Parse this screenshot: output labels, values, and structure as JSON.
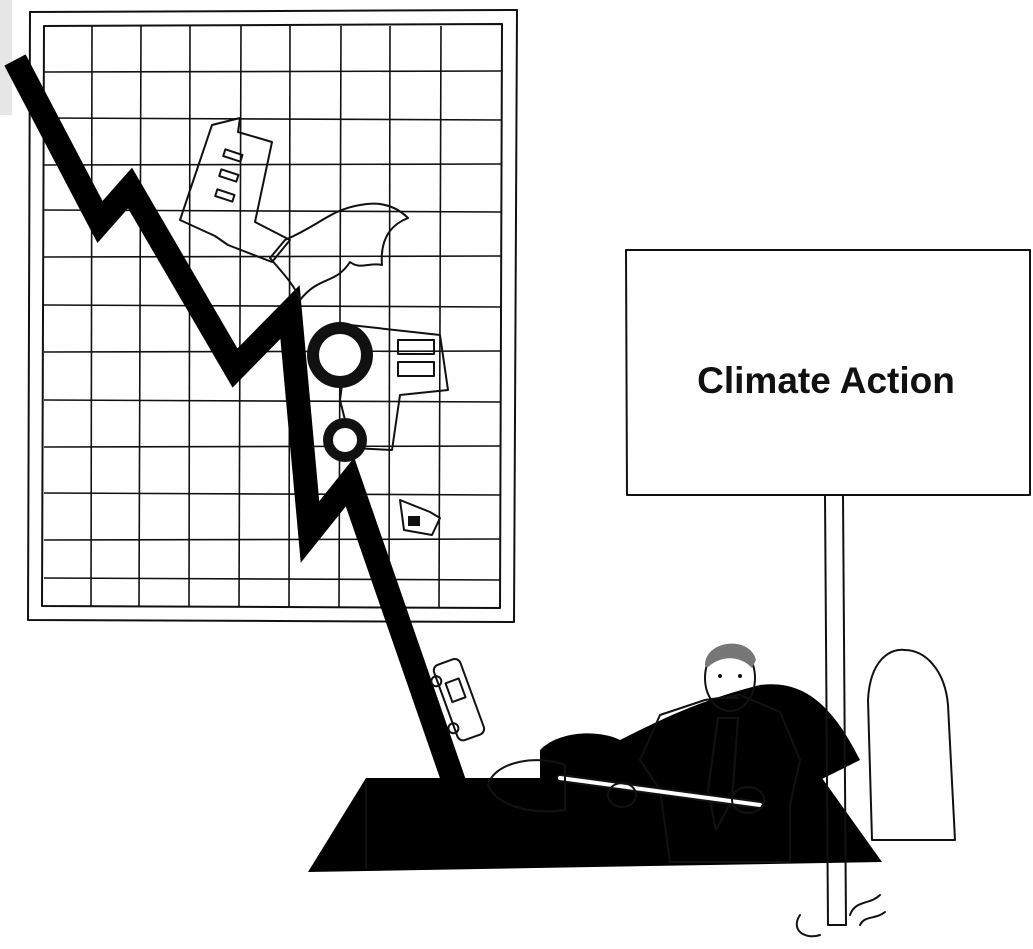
{
  "sign": {
    "text": "Climate Action"
  }
}
